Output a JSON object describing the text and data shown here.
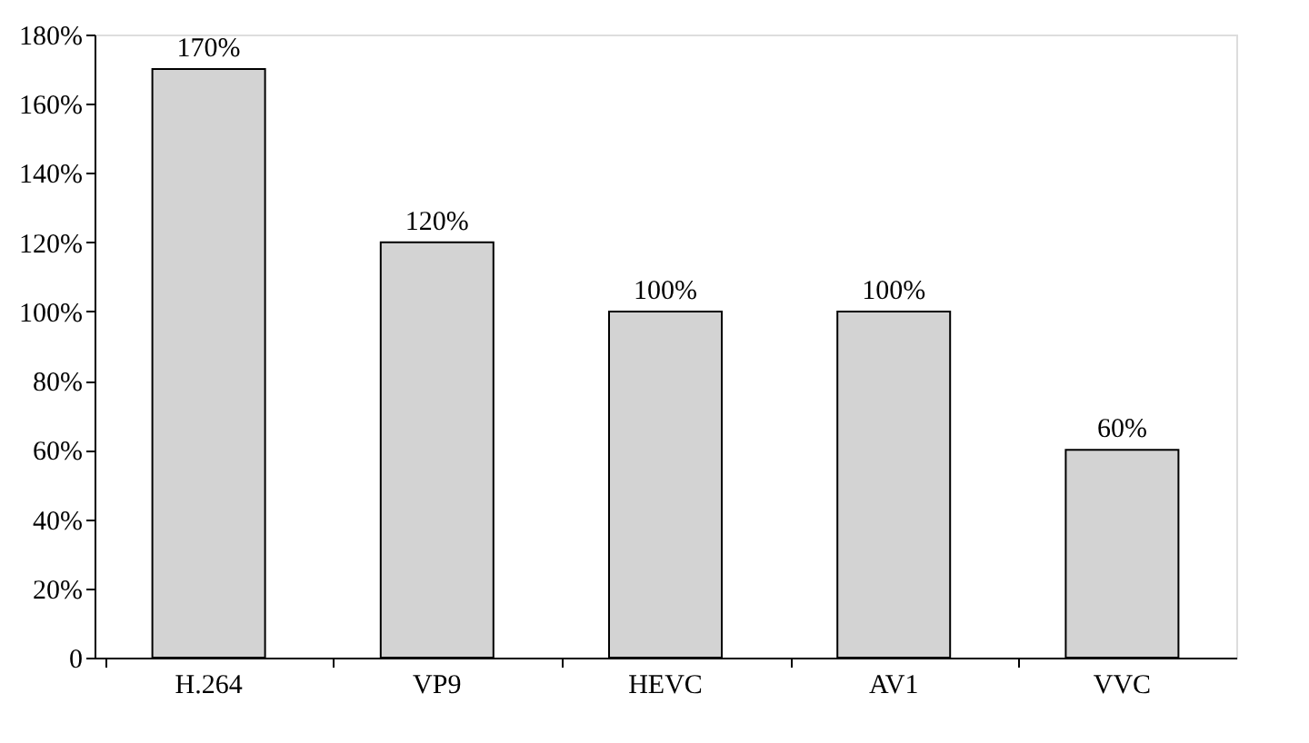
{
  "chart_data": {
    "type": "bar",
    "categories": [
      "H.264",
      "VP9",
      "HEVC",
      "AV1",
      "VVC"
    ],
    "values": [
      170,
      120,
      100,
      100,
      60
    ],
    "value_labels": [
      "170%",
      "120%",
      "100%",
      "100%",
      "60%"
    ],
    "color": "#d3d3d3",
    "ylim": [
      0,
      180
    ],
    "yticks": [
      0,
      {
        "value": 20,
        "label": "20%"
      },
      {
        "value": 40,
        "label": "40%"
      },
      {
        "value": 60,
        "label": "60%"
      },
      {
        "value": 80,
        "label": "80%"
      },
      {
        "value": 100,
        "label": "100%"
      },
      {
        "value": 120,
        "label": "120%"
      },
      {
        "value": 140,
        "label": "140%"
      },
      {
        "value": 160,
        "label": "160%"
      },
      {
        "value": 180,
        "label": "180%"
      }
    ],
    "grid": false
  }
}
